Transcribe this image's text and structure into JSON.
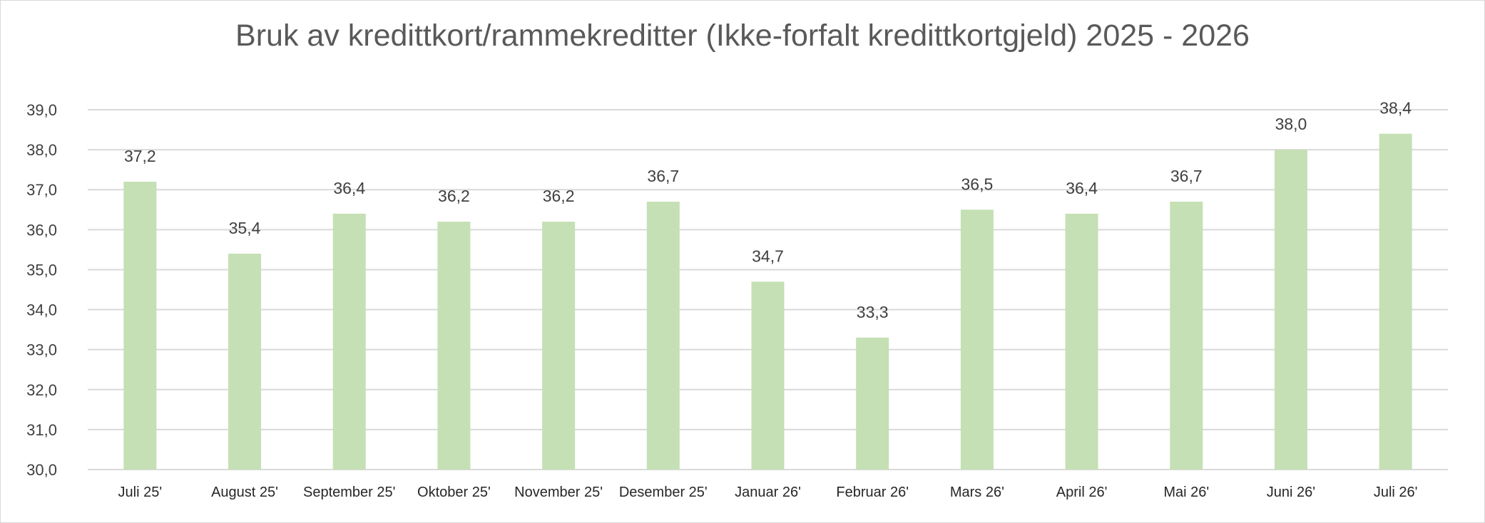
{
  "chart_data": {
    "type": "bar",
    "title": "Bruk av kredittkort/rammekreditter (Ikke-forfalt kredittkortgjeld) 2025 - 2026",
    "xlabel": "",
    "ylabel": "",
    "categories": [
      "Juli 25'",
      "August 25'",
      "September 25'",
      "Oktober 25'",
      "November 25'",
      "Desember 25'",
      "Januar 26'",
      "Februar 26'",
      "Mars 26'",
      "April 26'",
      "Mai 26'",
      "Juni 26'",
      "Juli 26'"
    ],
    "series": [
      {
        "values": [
          37.2,
          35.4,
          36.4,
          36.2,
          36.2,
          36.7,
          34.7,
          33.3,
          36.5,
          36.4,
          36.7,
          38.0,
          38.4
        ],
        "labels": [
          "37,2",
          "35,4",
          "36,4",
          "36,2",
          "36,2",
          "36,7",
          "34,7",
          "33,3",
          "36,5",
          "36,4",
          "36,7",
          "38,0",
          "38,4"
        ],
        "color": "#c5e0b4"
      }
    ],
    "ylim": [
      30,
      39
    ],
    "yticks": [
      30,
      31,
      32,
      33,
      34,
      35,
      36,
      37,
      38,
      39
    ],
    "ytick_labels": [
      "30,0",
      "31,0",
      "32,0",
      "33,0",
      "34,0",
      "35,0",
      "36,0",
      "37,0",
      "38,0",
      "39,0"
    ],
    "grid": true,
    "legend": "none",
    "gridline_color": "#d9d9d9"
  }
}
